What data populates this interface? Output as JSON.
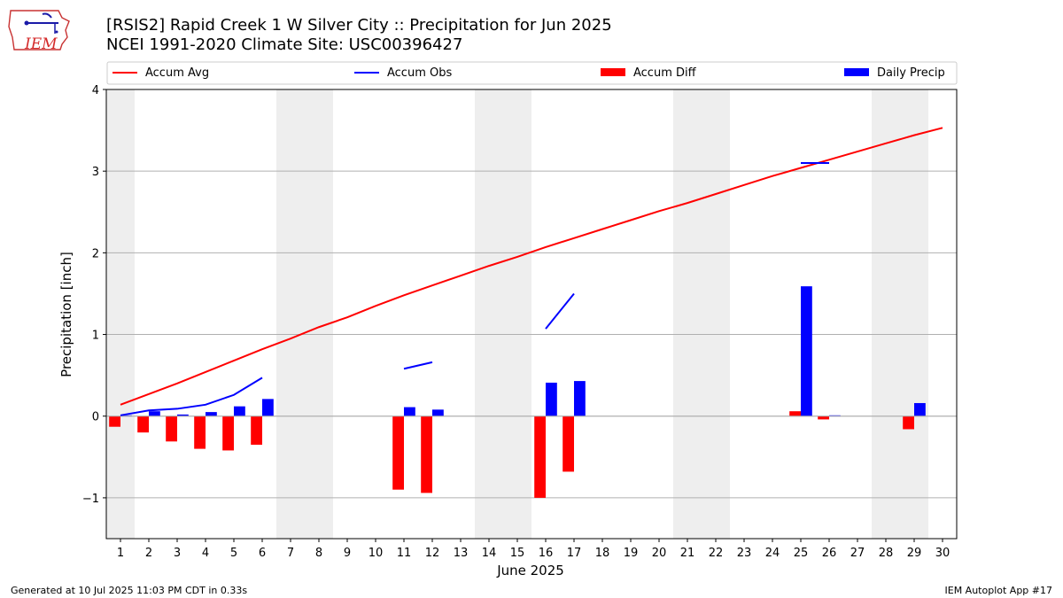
{
  "header": {
    "title_line1": "[RSIS2] Rapid Creek 1 W Silver City :: Precipitation for Jun 2025",
    "title_line2": "NCEI 1991-2020 Climate Site: USC00396427"
  },
  "logo": {
    "text": "IEM"
  },
  "footer": {
    "generated": "Generated at 10 Jul 2025 11:03 PM CDT in 0.33s",
    "app": "IEM Autoplot App #17"
  },
  "colors": {
    "avg": "#ff0000",
    "obs": "#0000ff",
    "diff": "#ff0000",
    "daily": "#0000ff",
    "weekend": "#eeeeee"
  },
  "chart_data": {
    "type": "bar",
    "xlabel": "June 2025",
    "ylabel": "Precipitation [inch]",
    "xlim": [
      0.5,
      30.5
    ],
    "ylim": [
      -1.5,
      4.0
    ],
    "yticks": [
      -1,
      0,
      1,
      2,
      3,
      4
    ],
    "ytick_labels": [
      "−1",
      "0",
      "1",
      "2",
      "3",
      "4"
    ],
    "grid": true,
    "legend_placement": "top",
    "days": [
      1,
      2,
      3,
      4,
      5,
      6,
      7,
      8,
      9,
      10,
      11,
      12,
      13,
      14,
      15,
      16,
      17,
      18,
      19,
      20,
      21,
      22,
      23,
      24,
      25,
      26,
      27,
      28,
      29,
      30
    ],
    "weekend_days": [
      1,
      7,
      8,
      14,
      15,
      21,
      22,
      28,
      29
    ],
    "series": [
      {
        "name": "Accum Avg",
        "kind": "line",
        "values": [
          0.14,
          0.27,
          0.4,
          0.54,
          0.68,
          0.82,
          0.95,
          1.09,
          1.21,
          1.35,
          1.48,
          1.6,
          1.72,
          1.84,
          1.95,
          2.07,
          2.18,
          2.29,
          2.4,
          2.51,
          2.61,
          2.72,
          2.83,
          2.94,
          3.04,
          3.14,
          3.24,
          3.34,
          3.44,
          3.53
        ]
      },
      {
        "name": "Accum Obs",
        "kind": "line",
        "values": [
          0.01,
          0.07,
          0.09,
          0.14,
          0.26,
          0.47,
          null,
          null,
          null,
          null,
          0.58,
          0.66,
          null,
          null,
          null,
          1.07,
          1.5,
          null,
          null,
          null,
          null,
          null,
          null,
          null,
          3.1,
          3.1,
          null,
          null,
          null,
          null
        ]
      },
      {
        "name": "Accum Diff",
        "kind": "bar",
        "values": [
          -0.13,
          -0.2,
          -0.31,
          -0.4,
          -0.42,
          -0.35,
          null,
          null,
          null,
          null,
          -0.9,
          -0.94,
          null,
          null,
          null,
          -1.0,
          -0.68,
          null,
          null,
          null,
          null,
          null,
          null,
          null,
          0.06,
          -0.04,
          null,
          null,
          -0.16,
          null
        ]
      },
      {
        "name": "Daily Precip",
        "kind": "bar",
        "values": [
          0.01,
          0.06,
          0.02,
          0.05,
          0.12,
          0.21,
          null,
          null,
          null,
          null,
          0.11,
          0.08,
          null,
          null,
          null,
          0.41,
          0.43,
          null,
          null,
          null,
          null,
          null,
          null,
          null,
          1.59,
          0.01,
          null,
          null,
          0.16,
          null
        ]
      }
    ]
  }
}
